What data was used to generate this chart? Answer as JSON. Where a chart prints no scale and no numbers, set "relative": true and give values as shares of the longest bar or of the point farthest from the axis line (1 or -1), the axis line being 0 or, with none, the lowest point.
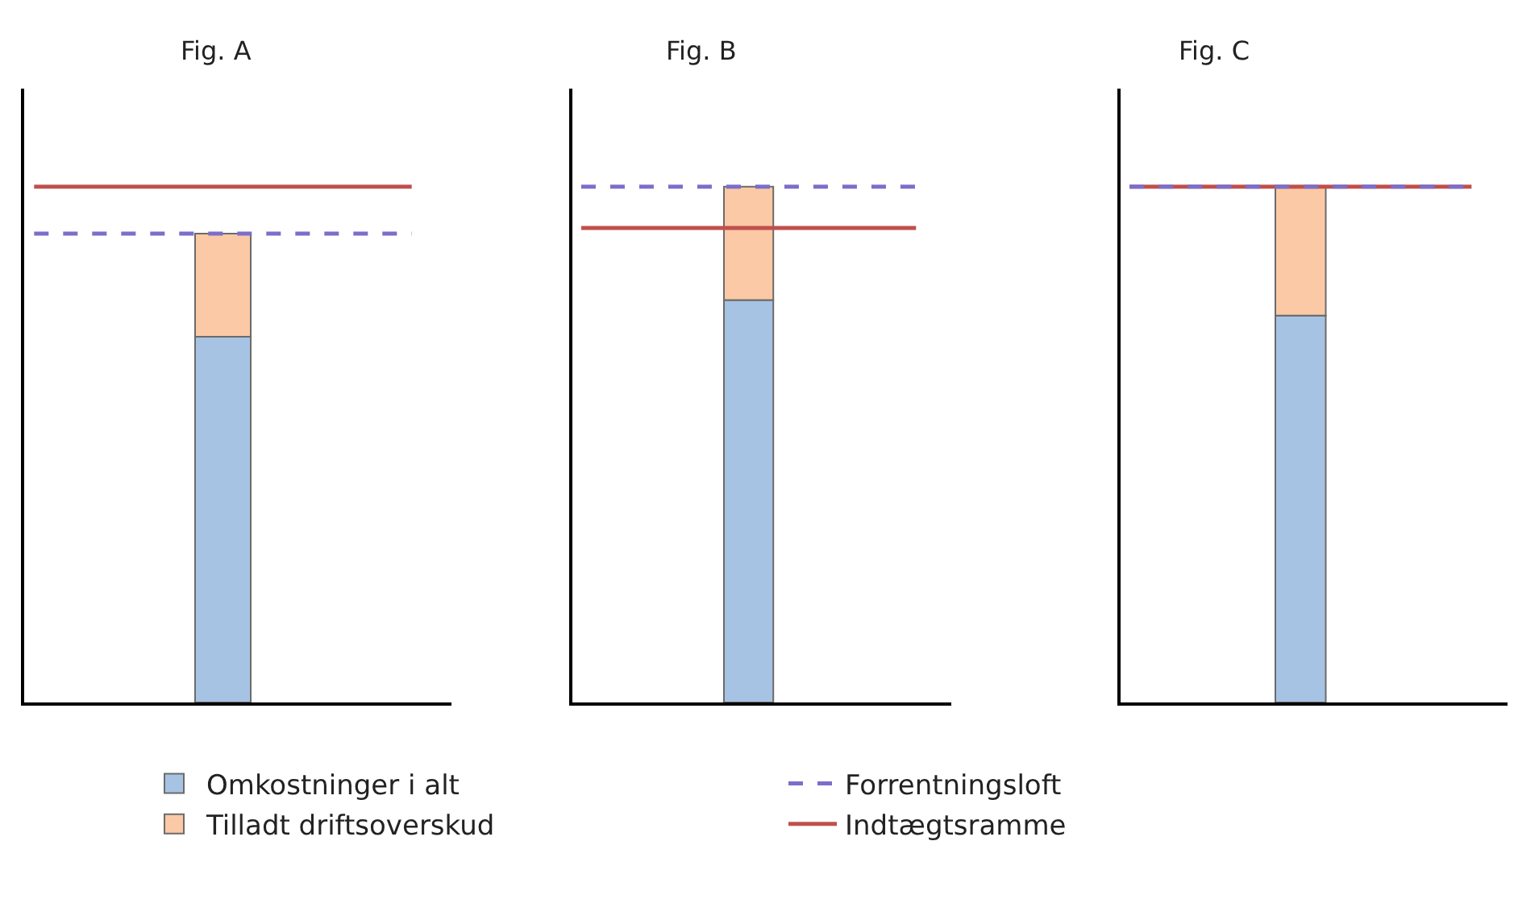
{
  "chart_data": [
    {
      "type": "bar",
      "title": "Fig. A",
      "categories": [
        null
      ],
      "stacked": true,
      "relative": true,
      "legend": "bottom",
      "series": [
        {
          "name": "Omkostninger i alt",
          "color": "#a7c3e4",
          "values": [
            0.78
          ]
        },
        {
          "name": "Tilladt driftsoverskud",
          "color": "#fbc9a5",
          "values": [
            0.22
          ]
        }
      ],
      "ref_lines": [
        {
          "axis": "y",
          "value": 1.0,
          "label": "Forrentningsloft",
          "color": "#7b6fc9",
          "line_style": "dashed"
        },
        {
          "axis": "y",
          "value": 1.1,
          "label": "Indtægtsramme",
          "color": "#c0504d",
          "line_style": "solid"
        }
      ]
    },
    {
      "type": "bar",
      "title": "Fig. B",
      "categories": [
        null
      ],
      "stacked": true,
      "relative": true,
      "series": [
        {
          "color": "#a7c3e4",
          "values": [
            0.78
          ]
        },
        {
          "color": "#fbc9a5",
          "values": [
            0.22
          ]
        }
      ],
      "ref_lines": [
        {
          "axis": "y",
          "value": 1.0,
          "color": "#7b6fc9",
          "line_style": "dashed"
        },
        {
          "axis": "y",
          "value": 0.92,
          "color": "#c0504d",
          "line_style": "solid"
        }
      ]
    },
    {
      "type": "bar",
      "title": "Fig. C",
      "categories": [
        null
      ],
      "stacked": true,
      "relative": true,
      "series": [
        {
          "color": "#a7c3e4",
          "values": [
            0.75
          ]
        },
        {
          "color": "#fbc9a5",
          "values": [
            0.25
          ]
        }
      ],
      "ref_lines": [
        {
          "axis": "y",
          "value": 1.0,
          "color": "#c0504d",
          "line_style": "solid"
        },
        {
          "axis": "y",
          "value": 1.0,
          "color": "#7b6fc9",
          "line_style": "dashed"
        }
      ]
    }
  ]
}
